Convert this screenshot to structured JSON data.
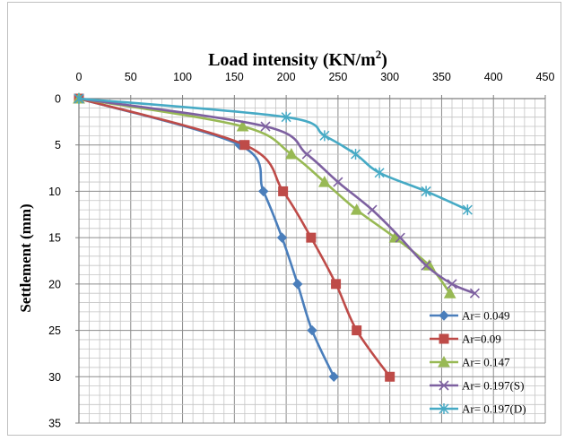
{
  "chart_data": {
    "type": "line",
    "title": "Load intensity (KN/m",
    "title_sup": "2",
    "title_tail": ")",
    "xlabel": "Load intensity (KN/m²)",
    "ylabel": "Settlement (mm)",
    "xlim": [
      0,
      450
    ],
    "ylim": [
      0,
      35
    ],
    "x_axis_position": "top",
    "y_axis_inverted": true,
    "x_major_ticks": [
      0,
      50,
      100,
      150,
      200,
      250,
      300,
      350,
      400,
      450
    ],
    "x_minor_step": 10,
    "y_major_ticks": [
      0,
      5,
      10,
      15,
      20,
      25,
      30,
      35
    ],
    "y_minor_step": 1,
    "grid": true,
    "legend_position": "bottom-right",
    "series": [
      {
        "name": "Ar= 0.049",
        "color": "#4a7ebb",
        "marker": "diamond",
        "x": [
          0,
          155,
          178,
          196,
          211,
          225,
          246
        ],
        "y": [
          0,
          5,
          10,
          15,
          20,
          25,
          30
        ]
      },
      {
        "name": "Ar=0.09",
        "color": "#be4b48",
        "marker": "square",
        "x": [
          0,
          160,
          197,
          224,
          248,
          268,
          300
        ],
        "y": [
          0,
          5,
          10,
          15,
          20,
          25,
          30
        ]
      },
      {
        "name": "Ar= 0.147",
        "color": "#98b954",
        "marker": "triangle",
        "x": [
          0,
          158,
          205,
          237,
          268,
          305,
          338,
          358
        ],
        "y": [
          0,
          3,
          6,
          9,
          12,
          15,
          18,
          21
        ]
      },
      {
        "name": "Ar= 0.197(S)",
        "color": "#7d60a0",
        "marker": "x",
        "x": [
          0,
          180,
          220,
          250,
          283,
          310,
          335,
          360,
          382
        ],
        "y": [
          0,
          3,
          6,
          9,
          12,
          15,
          18,
          20,
          21
        ]
      },
      {
        "name": "Ar= 0.197(D)",
        "color": "#46aac5",
        "marker": "star",
        "x": [
          0,
          200,
          237,
          267,
          290,
          335,
          375
        ],
        "y": [
          0,
          2,
          4,
          6,
          8,
          10,
          12
        ]
      }
    ]
  }
}
